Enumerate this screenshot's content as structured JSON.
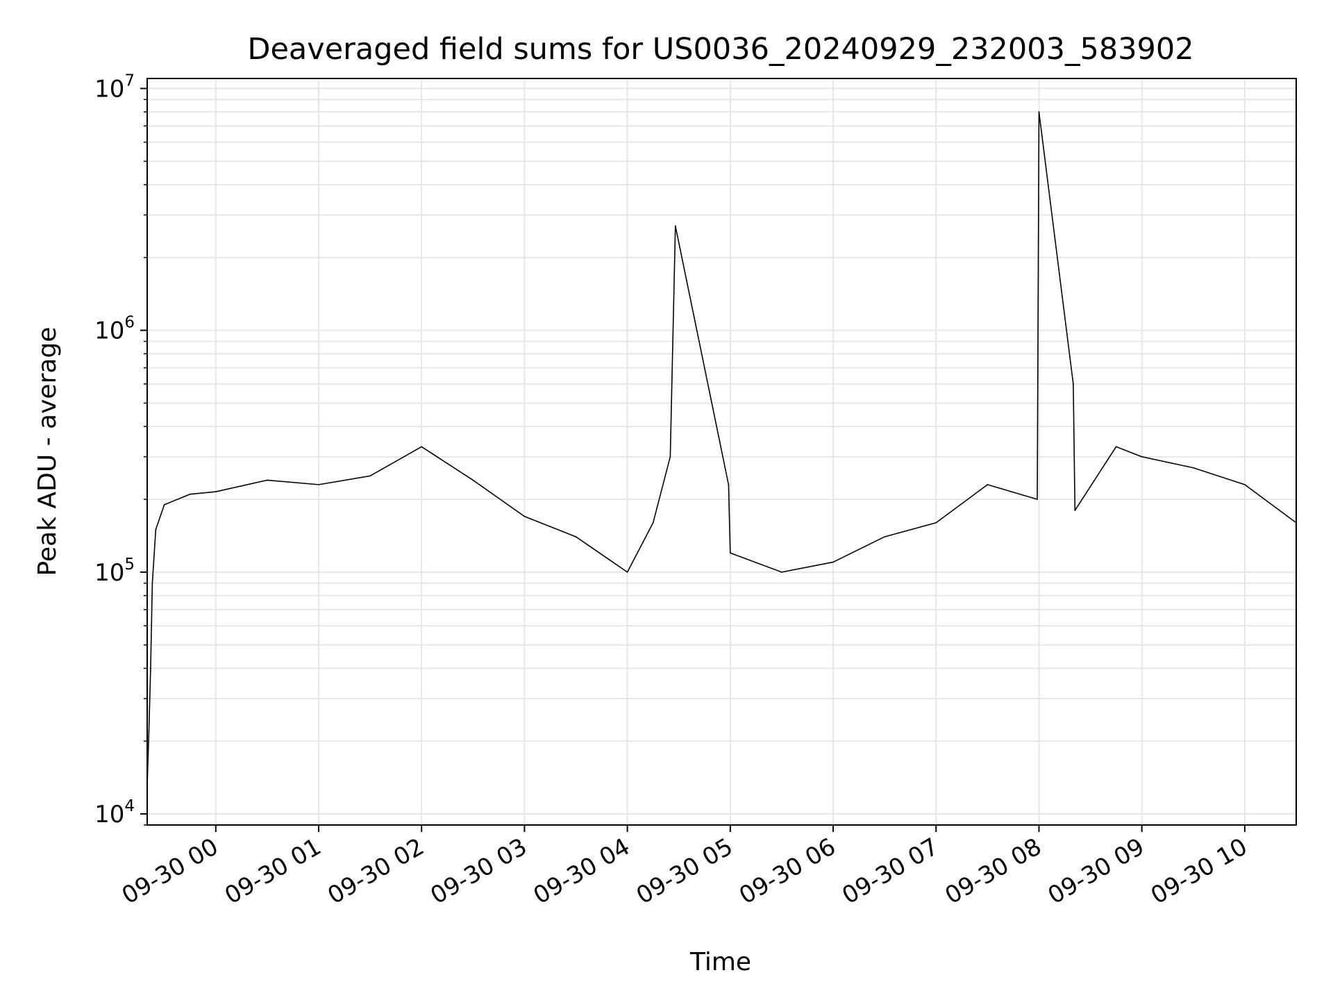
{
  "chart_data": {
    "type": "line",
    "title": "Deaveraged field sums for US0036_20240929_232003_583902",
    "xlabel": "Time",
    "ylabel": "Peak ADU - average",
    "yscale": "log",
    "ylim": [
      9000,
      11000000
    ],
    "xlim": [
      "2024-09-29T23:20:00",
      "2024-09-30T10:30:00"
    ],
    "grid": true,
    "line_color": "#000000",
    "grid_color": "#e6e6e6",
    "x_ticks": [
      {
        "t": "2024-09-30T00:00:00",
        "label": "09-30 00"
      },
      {
        "t": "2024-09-30T01:00:00",
        "label": "09-30 01"
      },
      {
        "t": "2024-09-30T02:00:00",
        "label": "09-30 02"
      },
      {
        "t": "2024-09-30T03:00:00",
        "label": "09-30 03"
      },
      {
        "t": "2024-09-30T04:00:00",
        "label": "09-30 04"
      },
      {
        "t": "2024-09-30T05:00:00",
        "label": "09-30 05"
      },
      {
        "t": "2024-09-30T06:00:00",
        "label": "09-30 06"
      },
      {
        "t": "2024-09-30T07:00:00",
        "label": "09-30 07"
      },
      {
        "t": "2024-09-30T08:00:00",
        "label": "09-30 08"
      },
      {
        "t": "2024-09-30T09:00:00",
        "label": "09-30 09"
      },
      {
        "t": "2024-09-30T10:00:00",
        "label": "09-30 10"
      }
    ],
    "y_ticks": [
      {
        "v": 10000,
        "base": "10",
        "exp": "4"
      },
      {
        "v": 100000,
        "base": "10",
        "exp": "5"
      },
      {
        "v": 1000000,
        "base": "10",
        "exp": "6"
      },
      {
        "v": 10000000,
        "base": "10",
        "exp": "7"
      }
    ],
    "series": [
      {
        "points": [
          [
            "2024-09-29T23:20:00",
            13000
          ],
          [
            "2024-09-29T23:21:00",
            22000
          ],
          [
            "2024-09-29T23:22:00",
            40000
          ],
          [
            "2024-09-29T23:23:00",
            90000
          ],
          [
            "2024-09-29T23:25:00",
            150000
          ],
          [
            "2024-09-29T23:30:00",
            190000
          ],
          [
            "2024-09-29T23:45:00",
            210000
          ],
          [
            "2024-09-30T00:00:00",
            215000
          ],
          [
            "2024-09-30T00:30:00",
            240000
          ],
          [
            "2024-09-30T01:00:00",
            230000
          ],
          [
            "2024-09-30T01:30:00",
            250000
          ],
          [
            "2024-09-30T02:00:00",
            330000
          ],
          [
            "2024-09-30T02:30:00",
            240000
          ],
          [
            "2024-09-30T03:00:00",
            170000
          ],
          [
            "2024-09-30T03:30:00",
            140000
          ],
          [
            "2024-09-30T04:00:00",
            100000
          ],
          [
            "2024-09-30T04:15:00",
            160000
          ],
          [
            "2024-09-30T04:25:00",
            300000
          ],
          [
            "2024-09-30T04:28:00",
            2700000
          ],
          [
            "2024-09-30T04:59:00",
            230000
          ],
          [
            "2024-09-30T05:00:00",
            120000
          ],
          [
            "2024-09-30T05:30:00",
            100000
          ],
          [
            "2024-09-30T06:00:00",
            110000
          ],
          [
            "2024-09-30T06:30:00",
            140000
          ],
          [
            "2024-09-30T07:00:00",
            160000
          ],
          [
            "2024-09-30T07:30:00",
            230000
          ],
          [
            "2024-09-30T07:59:00",
            200000
          ],
          [
            "2024-09-30T08:00:00",
            8000000
          ],
          [
            "2024-09-30T08:20:00",
            600000
          ],
          [
            "2024-09-30T08:21:00",
            180000
          ],
          [
            "2024-09-30T08:45:00",
            330000
          ],
          [
            "2024-09-30T09:00:00",
            300000
          ],
          [
            "2024-09-30T09:30:00",
            270000
          ],
          [
            "2024-09-30T10:00:00",
            230000
          ],
          [
            "2024-09-30T10:30:00",
            160000
          ]
        ]
      }
    ]
  }
}
